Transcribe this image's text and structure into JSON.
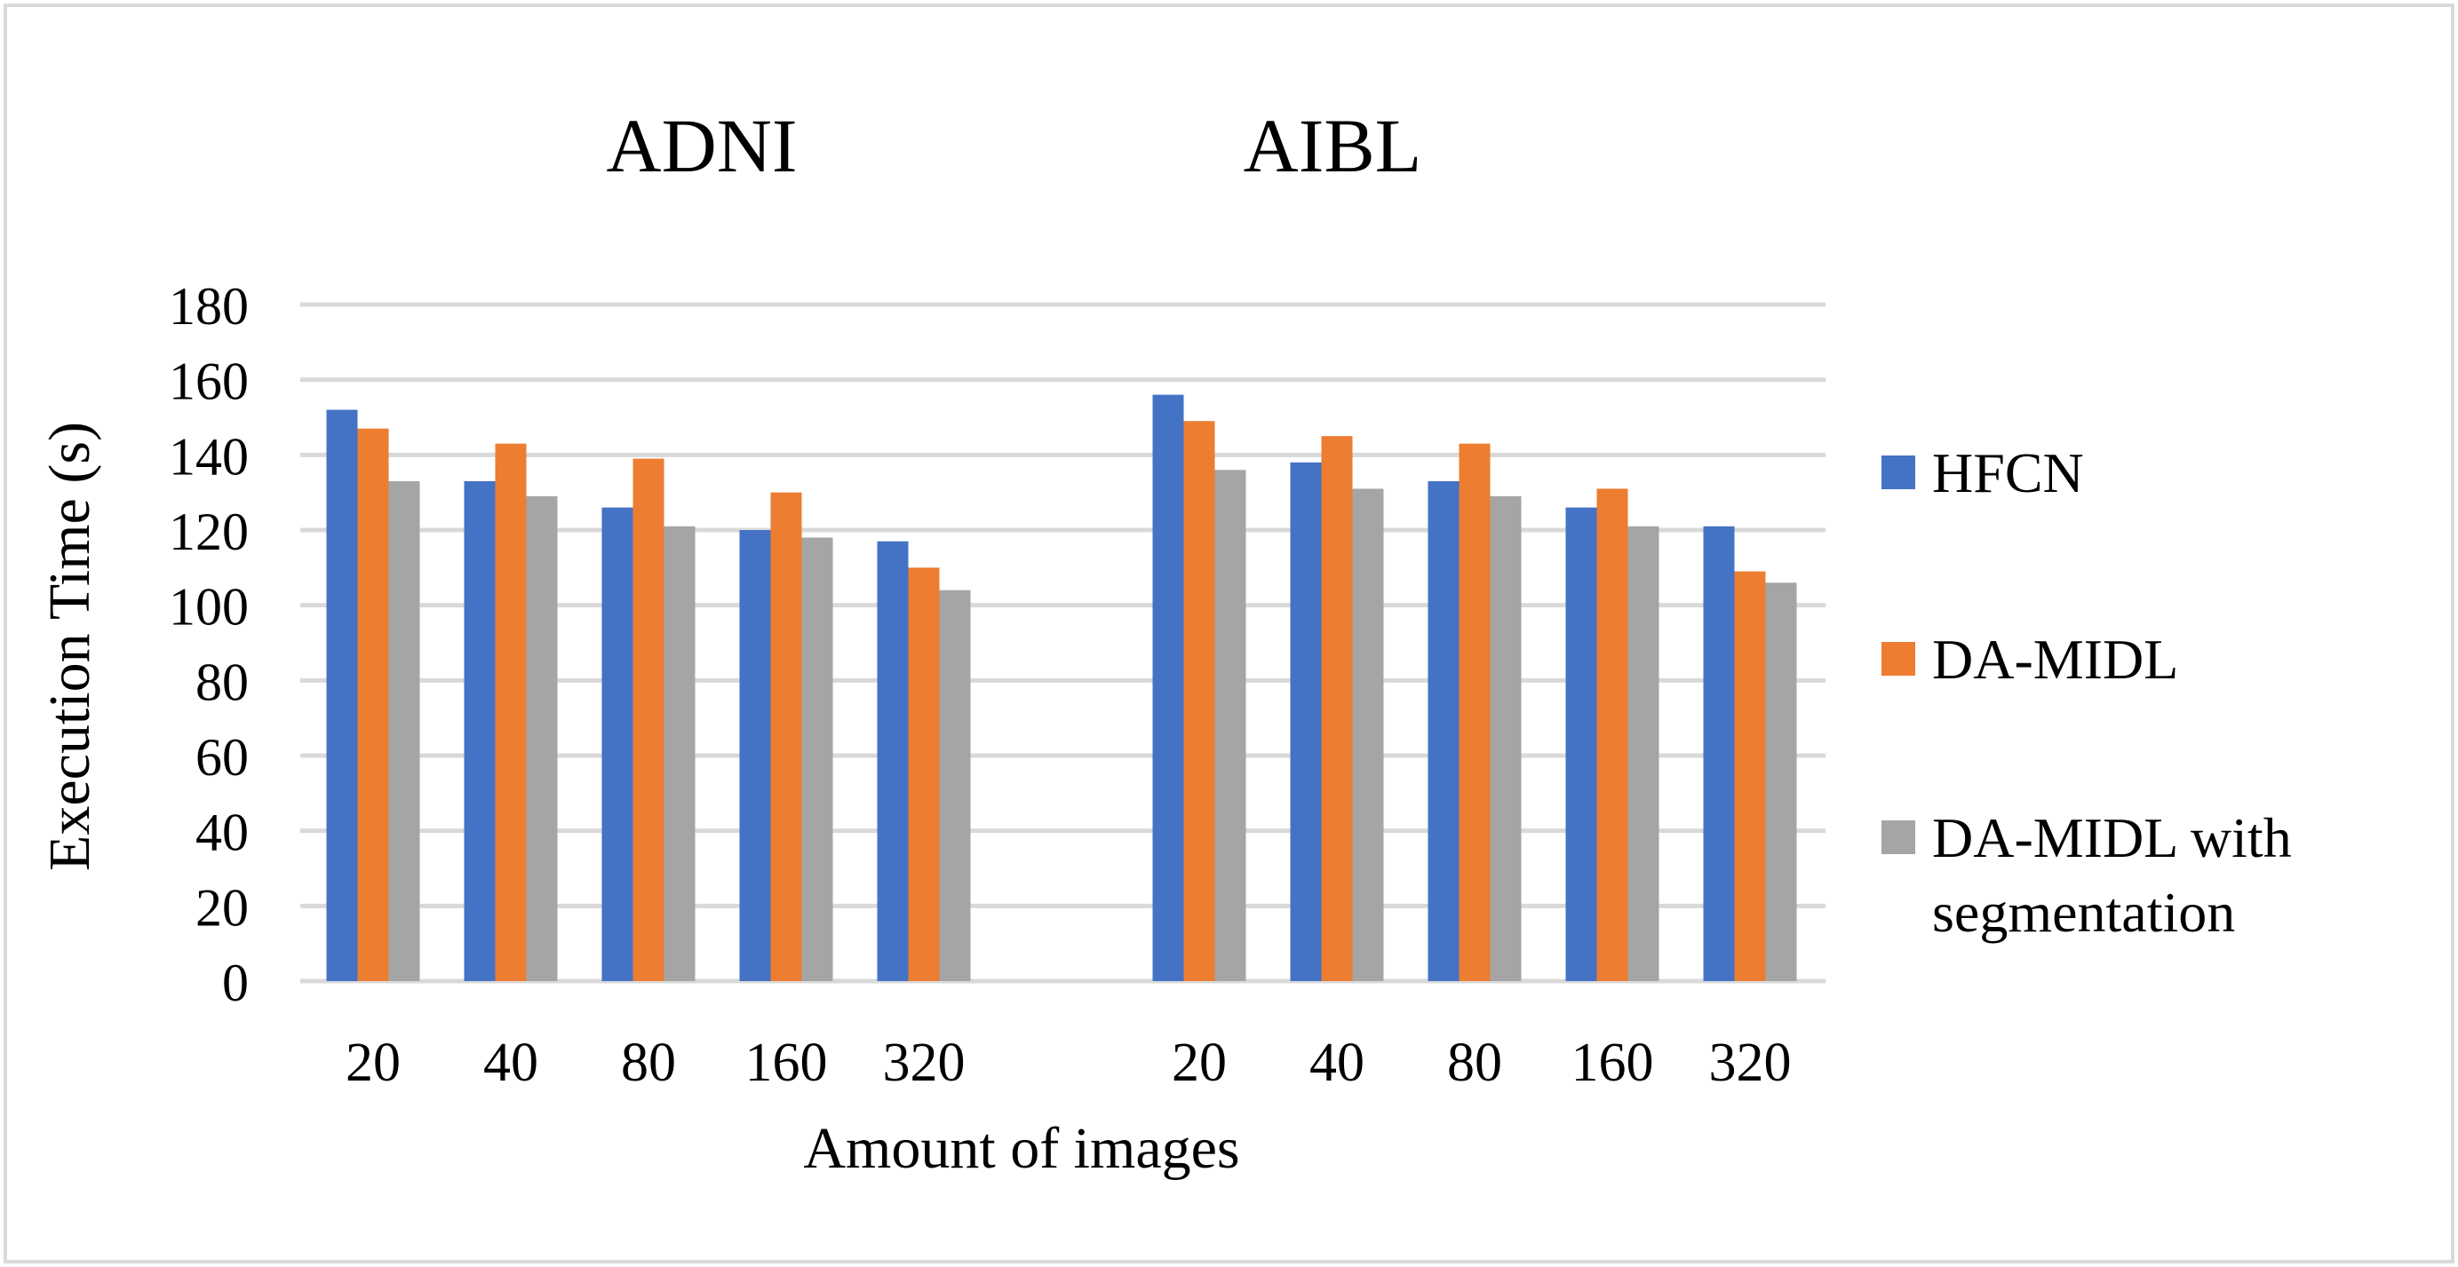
{
  "chart_data": {
    "type": "bar",
    "title": "",
    "xlabel": "Amount of images",
    "ylabel": "Execution Time (s)",
    "ylim": [
      0,
      180
    ],
    "yticks": [
      "0",
      "20",
      "40",
      "60",
      "80",
      "100",
      "120",
      "140",
      "160",
      "180"
    ],
    "grid": true,
    "legend_position": "right",
    "groups": [
      {
        "label": "ADNI",
        "categories": [
          "20",
          "40",
          "80",
          "160",
          "320"
        ],
        "series": [
          {
            "name": "HFCN",
            "values": [
              152,
              133,
              126,
              120,
              117
            ]
          },
          {
            "name": "DA-MIDL",
            "values": [
              147,
              143,
              139,
              130,
              110
            ]
          },
          {
            "name": "DA-MIDL with segmentation",
            "values": [
              133,
              129,
              121,
              118,
              104
            ]
          }
        ]
      },
      {
        "label": "AIBL",
        "categories": [
          "20",
          "40",
          "80",
          "160",
          "320"
        ],
        "series": [
          {
            "name": "HFCN",
            "values": [
              156,
              138,
              133,
              126,
              121
            ]
          },
          {
            "name": "DA-MIDL",
            "values": [
              149,
              145,
              143,
              131,
              109
            ]
          },
          {
            "name": "DA-MIDL with segmentation",
            "values": [
              136,
              131,
              129,
              121,
              106
            ]
          }
        ]
      }
    ],
    "legend": [
      {
        "lines": [
          "HFCN"
        ],
        "color": "#4472C4"
      },
      {
        "lines": [
          "DA-MIDL"
        ],
        "color": "#ED7D31"
      },
      {
        "lines": [
          "DA-MIDL with",
          "segmentation"
        ],
        "color": "#A5A5A5"
      }
    ],
    "colors": {
      "HFCN": "#4472C4",
      "DA-MIDL": "#ED7D31",
      "DA-MIDL with segmentation": "#A5A5A5",
      "grid": "#D9D9D9",
      "border": "#D9D9D9"
    }
  }
}
